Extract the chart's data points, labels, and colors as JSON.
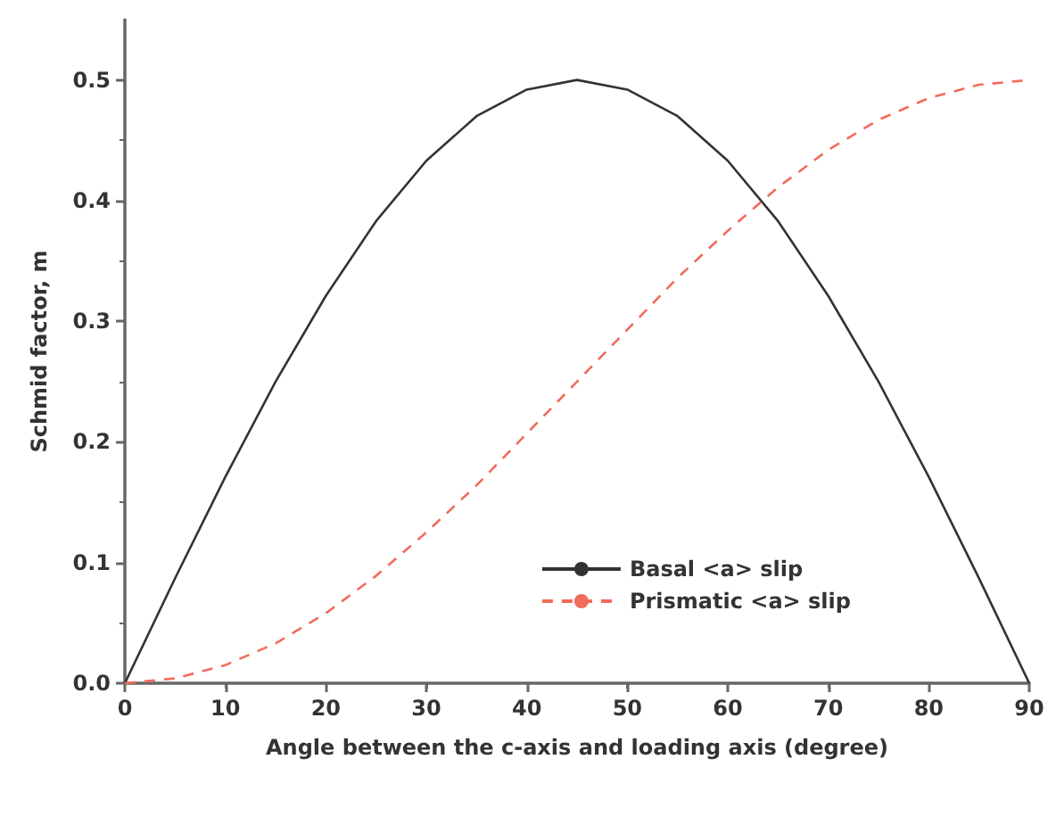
{
  "chart_data": {
    "type": "line",
    "xlabel": "Angle between the c-axis and loading axis (degree)",
    "ylabel": "Schmid factor, m",
    "x": [
      0,
      5,
      10,
      15,
      20,
      25,
      30,
      35,
      40,
      45,
      50,
      55,
      60,
      65,
      70,
      75,
      80,
      85,
      90
    ],
    "series": [
      {
        "name": "Basal <a> slip",
        "color": "#333333",
        "line_style": "solid",
        "values": [
          0,
          0.087,
          0.171,
          0.25,
          0.321,
          0.383,
          0.433,
          0.47,
          0.492,
          0.5,
          0.492,
          0.47,
          0.433,
          0.383,
          0.321,
          0.25,
          0.171,
          0.087,
          0
        ]
      },
      {
        "name": "Prismatic <a> slip",
        "color": "#f26b5b",
        "line_style": "dashed",
        "values": [
          0,
          0.004,
          0.015,
          0.033,
          0.058,
          0.089,
          0.125,
          0.164,
          0.207,
          0.25,
          0.293,
          0.336,
          0.375,
          0.411,
          0.442,
          0.467,
          0.485,
          0.496,
          0.5
        ]
      }
    ],
    "xlim": [
      0,
      90
    ],
    "xticks": [
      0,
      10,
      20,
      30,
      40,
      50,
      60,
      70,
      80,
      90
    ],
    "ylim": [
      0,
      0.55
    ],
    "yticks": [
      "0.0",
      0.1,
      0.2,
      0.3,
      0.4,
      0.5
    ],
    "grid": false,
    "legend": "bottom right",
    "marker": "none"
  }
}
